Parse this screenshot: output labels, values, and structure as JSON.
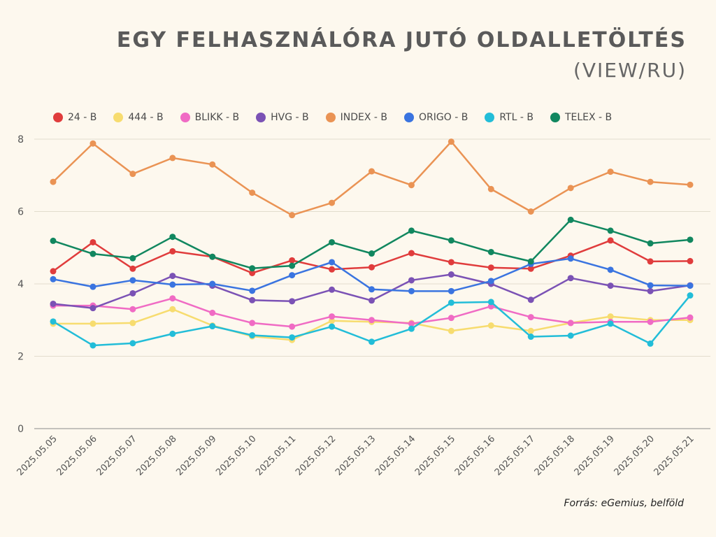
{
  "title": "EGY FELHASZNÁLÓRA JUTÓ OLDALLETÖLTÉS",
  "subtitle": "(VIEW/RU)",
  "source": "Forrás: eGemius, belföld",
  "chart_data": {
    "type": "line",
    "x": [
      "2025.05.05",
      "2025.05.06",
      "2025.05.07",
      "2025.05.08",
      "2025.05.09",
      "2025.05.10",
      "2025.05.11",
      "2025.05.12",
      "2025.05.13",
      "2025.05.14",
      "2025.05.15",
      "2025.05.16",
      "2025.05.17",
      "2025.05.18",
      "2025.05.19",
      "2025.05.20",
      "2025.05.21"
    ],
    "ylim": [
      0,
      8
    ],
    "yticks": [
      0,
      2,
      4,
      6,
      8
    ],
    "grid": true,
    "legend_position": "top",
    "series": [
      {
        "name": "24 - B",
        "color": "#e03c3c",
        "values": [
          4.35,
          5.15,
          4.42,
          4.9,
          4.75,
          4.3,
          4.65,
          4.4,
          4.46,
          4.85,
          4.6,
          4.45,
          4.42,
          4.78,
          5.2,
          4.62,
          4.63
        ]
      },
      {
        "name": "444 - B",
        "color": "#f7dc6f",
        "values": [
          2.9,
          2.9,
          2.92,
          3.3,
          2.85,
          2.55,
          2.45,
          2.98,
          2.95,
          2.92,
          2.7,
          2.85,
          2.7,
          2.92,
          3.1,
          3.0,
          3.0
        ]
      },
      {
        "name": "BLIKK - B",
        "color": "#f06bc4",
        "values": [
          3.4,
          3.4,
          3.3,
          3.6,
          3.2,
          2.92,
          2.82,
          3.1,
          3.0,
          2.9,
          3.06,
          3.38,
          3.08,
          2.92,
          2.95,
          2.95,
          3.07
        ]
      },
      {
        "name": "HVG - B",
        "color": "#7b52b5",
        "values": [
          3.45,
          3.33,
          3.74,
          4.22,
          3.95,
          3.55,
          3.52,
          3.84,
          3.54,
          4.1,
          4.26,
          4.0,
          3.56,
          4.16,
          3.95,
          3.8,
          3.96
        ]
      },
      {
        "name": "INDEX - B",
        "color": "#ea9354",
        "values": [
          6.82,
          7.88,
          7.04,
          7.48,
          7.3,
          6.52,
          5.9,
          6.24,
          7.11,
          6.73,
          7.93,
          6.62,
          6.0,
          6.65,
          7.1,
          6.82,
          6.74
        ]
      },
      {
        "name": "ORIGO - B",
        "color": "#3a74e0",
        "values": [
          4.13,
          3.92,
          4.1,
          3.98,
          4.0,
          3.81,
          4.24,
          4.6,
          3.85,
          3.8,
          3.8,
          4.08,
          4.55,
          4.7,
          4.39,
          3.96,
          3.95
        ]
      },
      {
        "name": "RTL - B",
        "color": "#22bdd8",
        "values": [
          2.96,
          2.3,
          2.36,
          2.62,
          2.83,
          2.58,
          2.52,
          2.82,
          2.4,
          2.76,
          3.48,
          3.5,
          2.54,
          2.57,
          2.9,
          2.35,
          3.68
        ]
      },
      {
        "name": "TELEX - B",
        "color": "#11875f",
        "values": [
          5.19,
          4.83,
          4.71,
          5.3,
          4.75,
          4.43,
          4.5,
          5.15,
          4.84,
          5.47,
          5.2,
          4.88,
          4.62,
          5.77,
          5.47,
          5.12,
          5.22
        ]
      }
    ]
  }
}
